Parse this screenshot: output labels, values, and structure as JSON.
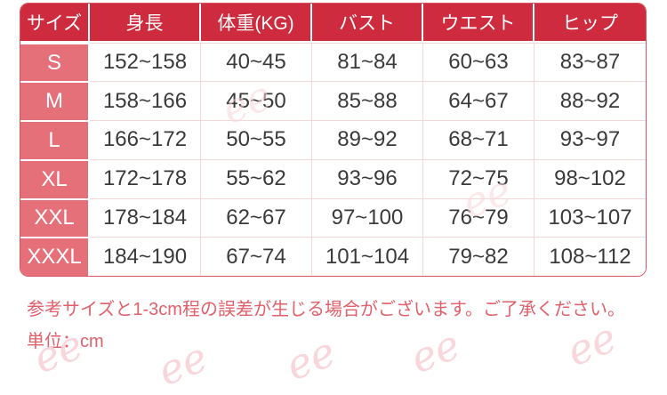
{
  "size_chart": {
    "columns": [
      "サイズ",
      "身長",
      "体重(KG)",
      "バスト",
      "ウエスト",
      "ヒップ"
    ],
    "rows": [
      {
        "size": "S",
        "values": [
          "152~158",
          "40~45",
          "81~84",
          "60~63",
          "83~87"
        ]
      },
      {
        "size": "M",
        "values": [
          "158~166",
          "45~50",
          "85~88",
          "64~67",
          "88~92"
        ]
      },
      {
        "size": "L",
        "values": [
          "166~172",
          "50~55",
          "89~92",
          "68~71",
          "93~97"
        ]
      },
      {
        "size": "XL",
        "values": [
          "172~178",
          "55~62",
          "93~96",
          "72~75",
          "98~102"
        ]
      },
      {
        "size": "XXL",
        "values": [
          "178~184",
          "62~67",
          "97~100",
          "76~79",
          "103~107"
        ]
      },
      {
        "size": "XXXL",
        "values": [
          "184~190",
          "67~74",
          "101~104",
          "79~82",
          "108~112"
        ]
      }
    ],
    "tolerance_note": "参考サイズと1-3cm程の誤差が生じる場合がございます。ご了承ください。",
    "unit_note": "単位：cm"
  },
  "watermark": {
    "text": "ee"
  },
  "colors": {
    "header_bg": "#ce2b3e",
    "size_col_bg": "#e5707a",
    "table_border": "#d9545f",
    "cell_divider": "#f3d8da",
    "data_text": "#3a3a3a",
    "note_text": "#e0606b",
    "watermark": "#f8d6db"
  }
}
